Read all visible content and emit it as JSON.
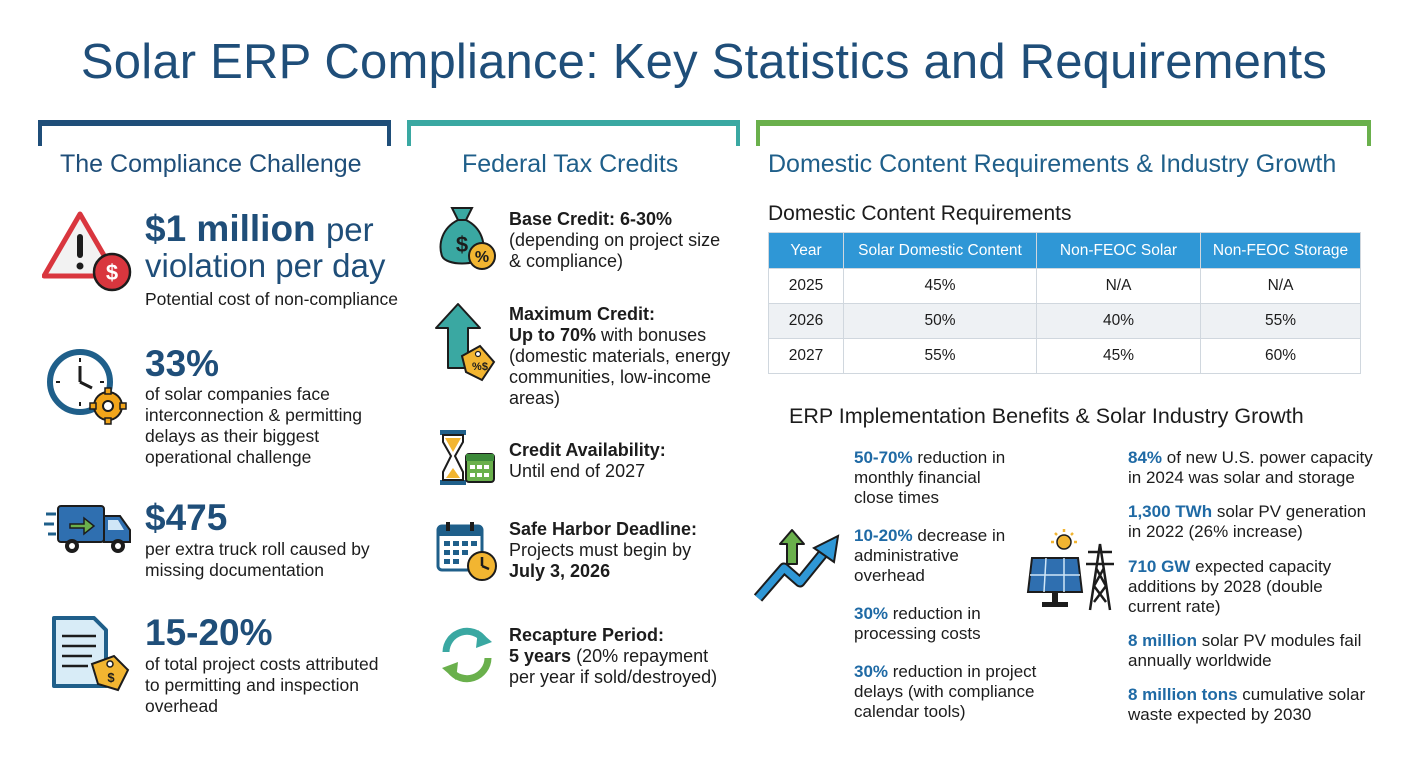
{
  "title": "Solar ERP Compliance: Key Statistics and Requirements",
  "colors": {
    "navy": "#1f4e79",
    "teal": "#3aa8a2",
    "green": "#6ab04c",
    "table_header": "#2f97d6"
  },
  "columns": {
    "challenge": "The Compliance Challenge",
    "credits": "Federal Tax Credits",
    "domestic": "Domestic Content Requirements & Industry Growth"
  },
  "challenge": [
    {
      "icon": "warning-dollar-icon",
      "value": "$1 million",
      "value_suffix": "per",
      "value_line2": "violation per day",
      "desc": "Potential cost of non-compliance"
    },
    {
      "icon": "clock-gear-icon",
      "value": "33%",
      "desc": "of solar companies face interconnection & permitting delays as their biggest operational challenge"
    },
    {
      "icon": "delivery-truck-icon",
      "value": "$475",
      "desc": "per extra truck roll caused by missing documentation"
    },
    {
      "icon": "document-tag-icon",
      "value": "15-20%",
      "desc": "of total project costs attributed to permitting and inspection overhead"
    }
  ],
  "credits": [
    {
      "icon": "money-bag-percent-icon",
      "heading": "Base Credit: 6-30%",
      "text": "(depending on project size & compliance)"
    },
    {
      "icon": "up-arrow-tag-icon",
      "heading": "Maximum Credit:",
      "bold": "Up to 70%",
      "text": " with bonuses (domestic materials, energy communities, low-income areas)"
    },
    {
      "icon": "hourglass-calendar-icon",
      "heading": "Credit Availability:",
      "text": "Until end of 2027"
    },
    {
      "icon": "calendar-clock-icon",
      "heading": "Safe Harbor Deadline:",
      "text": "Projects must begin by",
      "bold2": "July 3, 2026"
    },
    {
      "icon": "recycle-arrows-icon",
      "heading": "Recapture Period:",
      "bold": "5 years",
      "text": " (20% repayment per year if sold/destroyed)"
    }
  ],
  "domestic_table": {
    "title": "Domestic Content Requirements",
    "headers": [
      "Year",
      "Solar Domestic Content",
      "Non-FEOC Solar",
      "Non-FEOC Storage"
    ],
    "rows": [
      [
        "2025",
        "45%",
        "N/A",
        "N/A"
      ],
      [
        "2026",
        "50%",
        "40%",
        "55%"
      ],
      [
        "2027",
        "55%",
        "45%",
        "60%"
      ]
    ]
  },
  "benefits": {
    "title": "ERP Implementation Benefits & Solar Industry Growth",
    "left": [
      {
        "bold": "50-70%",
        "text": " reduction in monthly financial close times"
      },
      {
        "bold": "10-20%",
        "text": " decrease in administrative overhead"
      },
      {
        "bold": "30%",
        "text": " reduction in processing costs"
      },
      {
        "bold": "30%",
        "text": " reduction in project delays (with compliance calendar tools)"
      }
    ],
    "right": [
      {
        "bold": "84%",
        "text": " of new U.S. power capacity in 2024 was solar and storage"
      },
      {
        "bold": "1,300 TWh",
        "text": " solar PV generation in 2022 (26% increase)"
      },
      {
        "bold": "710 GW",
        "text": " expected capacity additions by 2028 (double current rate)"
      },
      {
        "bold": "8 million",
        "text": " solar PV modules fail annually worldwide"
      },
      {
        "bold": "8 million tons",
        "text": " cumulative solar waste expected by 2030"
      }
    ]
  }
}
